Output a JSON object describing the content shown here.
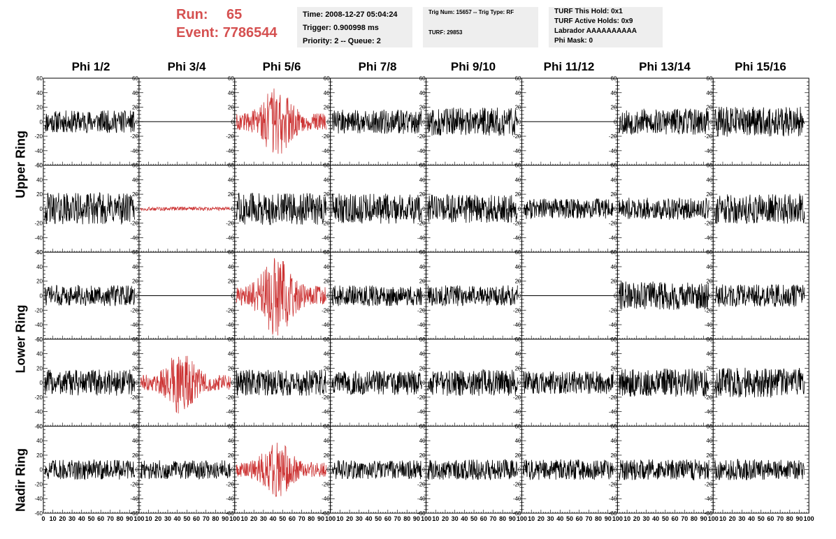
{
  "run": {
    "run_label": "Run:",
    "run_value": "65",
    "event_label": "Event:",
    "event_value": "7786544"
  },
  "time_box": {
    "time": "Time: 2008-12-27 05:04:24",
    "trigger": "Trigger: 0.900998 ms",
    "priority": "Priority: 2 -- Queue: 2"
  },
  "trig_box": {
    "trig": "Trig Num: 15657 -- Trig Type: RF",
    "turf": "TURF: 29853"
  },
  "turf_box": {
    "hold": "TURF This Hold: 0x1",
    "active": "TURF Active Holds: 0x9",
    "labrador": "Labrador AAAAAAAAAA",
    "phimask": "Phi Mask: 0"
  },
  "columns": [
    "Phi 1/2",
    "Phi 3/4",
    "Phi 5/6",
    "Phi 7/8",
    "Phi 9/10",
    "Phi 11/12",
    "Phi 13/14",
    "Phi 15/16"
  ],
  "ring_labels": [
    "Upper Ring",
    "Lower Ring",
    "Nadir Ring"
  ],
  "colors": {
    "triggered": "#cc3333",
    "normal": "#000000",
    "title": "#d55050",
    "box": "#eeeeee"
  },
  "chart_data": {
    "type": "line",
    "description_units": "time samples vs voltage",
    "xlim": [
      0,
      100
    ],
    "ylim": [
      -60,
      60
    ],
    "y_ticks": [
      60,
      40,
      20,
      0,
      -20,
      -40,
      -60
    ],
    "x_ticks": [
      0,
      10,
      20,
      30,
      40,
      50,
      60,
      70,
      80,
      90,
      100
    ],
    "rows": 5,
    "cols": 8,
    "panels": [
      {
        "row": 0,
        "col": 0,
        "amp": 12,
        "highlight": false,
        "flat": false
      },
      {
        "row": 0,
        "col": 1,
        "amp": 0,
        "highlight": false,
        "flat": true
      },
      {
        "row": 0,
        "col": 2,
        "amp": 20,
        "highlight": true,
        "flat": false,
        "burst": true
      },
      {
        "row": 0,
        "col": 3,
        "amp": 13,
        "highlight": false,
        "flat": false
      },
      {
        "row": 0,
        "col": 4,
        "amp": 15,
        "highlight": false,
        "flat": false
      },
      {
        "row": 0,
        "col": 5,
        "amp": 0,
        "highlight": false,
        "flat": true
      },
      {
        "row": 0,
        "col": 6,
        "amp": 14,
        "highlight": false,
        "flat": false
      },
      {
        "row": 0,
        "col": 7,
        "amp": 16,
        "highlight": false,
        "flat": false
      },
      {
        "row": 1,
        "col": 0,
        "amp": 17,
        "highlight": false,
        "flat": false
      },
      {
        "row": 1,
        "col": 1,
        "amp": 2,
        "highlight": true,
        "flat": false
      },
      {
        "row": 1,
        "col": 2,
        "amp": 17,
        "highlight": false,
        "flat": false
      },
      {
        "row": 1,
        "col": 3,
        "amp": 16,
        "highlight": false,
        "flat": false
      },
      {
        "row": 1,
        "col": 4,
        "amp": 15,
        "highlight": false,
        "flat": false
      },
      {
        "row": 1,
        "col": 5,
        "amp": 11,
        "highlight": false,
        "flat": false
      },
      {
        "row": 1,
        "col": 6,
        "amp": 12,
        "highlight": false,
        "flat": false
      },
      {
        "row": 1,
        "col": 7,
        "amp": 16,
        "highlight": false,
        "flat": false
      },
      {
        "row": 2,
        "col": 0,
        "amp": 11,
        "highlight": false,
        "flat": false
      },
      {
        "row": 2,
        "col": 1,
        "amp": 0,
        "highlight": false,
        "flat": true
      },
      {
        "row": 2,
        "col": 2,
        "amp": 24,
        "highlight": true,
        "flat": false,
        "burst": true
      },
      {
        "row": 2,
        "col": 3,
        "amp": 11,
        "highlight": false,
        "flat": false
      },
      {
        "row": 2,
        "col": 4,
        "amp": 11,
        "highlight": false,
        "flat": false
      },
      {
        "row": 2,
        "col": 5,
        "amp": 0,
        "highlight": false,
        "flat": true
      },
      {
        "row": 2,
        "col": 6,
        "amp": 15,
        "highlight": false,
        "flat": false
      },
      {
        "row": 2,
        "col": 7,
        "amp": 12,
        "highlight": false,
        "flat": false
      },
      {
        "row": 3,
        "col": 0,
        "amp": 14,
        "highlight": false,
        "flat": false
      },
      {
        "row": 3,
        "col": 1,
        "amp": 18,
        "highlight": true,
        "flat": false,
        "burst": true
      },
      {
        "row": 3,
        "col": 2,
        "amp": 14,
        "highlight": false,
        "flat": false
      },
      {
        "row": 3,
        "col": 3,
        "amp": 13,
        "highlight": false,
        "flat": false
      },
      {
        "row": 3,
        "col": 4,
        "amp": 14,
        "highlight": false,
        "flat": false
      },
      {
        "row": 3,
        "col": 5,
        "amp": 12,
        "highlight": false,
        "flat": false
      },
      {
        "row": 3,
        "col": 6,
        "amp": 15,
        "highlight": false,
        "flat": false
      },
      {
        "row": 3,
        "col": 7,
        "amp": 16,
        "highlight": false,
        "flat": false
      },
      {
        "row": 4,
        "col": 0,
        "amp": 11,
        "highlight": false,
        "flat": false
      },
      {
        "row": 4,
        "col": 1,
        "amp": 10,
        "highlight": false,
        "flat": false
      },
      {
        "row": 4,
        "col": 2,
        "amp": 17,
        "highlight": true,
        "flat": false,
        "burst": true
      },
      {
        "row": 4,
        "col": 3,
        "amp": 10,
        "highlight": false,
        "flat": false
      },
      {
        "row": 4,
        "col": 4,
        "amp": 11,
        "highlight": false,
        "flat": false
      },
      {
        "row": 4,
        "col": 5,
        "amp": 11,
        "highlight": false,
        "flat": false
      },
      {
        "row": 4,
        "col": 6,
        "amp": 11,
        "highlight": false,
        "flat": false
      },
      {
        "row": 4,
        "col": 7,
        "amp": 11,
        "highlight": false,
        "flat": false
      }
    ]
  }
}
